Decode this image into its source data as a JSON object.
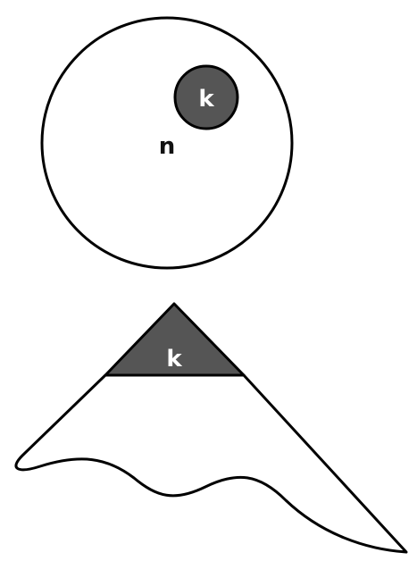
{
  "top_figure": {
    "outer_label": "n",
    "inner_label": "k"
  },
  "bottom_figure": {
    "tip_label": "k"
  },
  "colors": {
    "stroke": "#000000",
    "fill_outer": "#ffffff",
    "fill_inner": "#555555"
  }
}
